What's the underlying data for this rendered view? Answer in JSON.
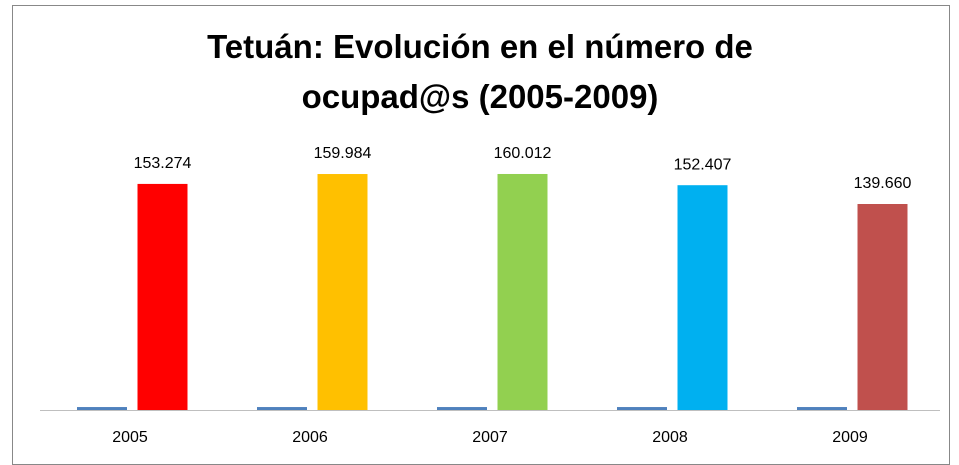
{
  "chart_data": {
    "type": "bar",
    "title": "Tetuán: Evolución en el número de ocupad@s (2005-2009)",
    "categories": [
      "2005",
      "2006",
      "2007",
      "2008",
      "2009"
    ],
    "series": [
      {
        "color": "#4f81bd",
        "values": [
          2005,
          2006,
          2007,
          2008,
          2009
        ]
      },
      {
        "colors": [
          "#ff0000",
          "#ffc000",
          "#92d050",
          "#00b0f0",
          "#c0504d"
        ],
        "values": [
          153274,
          159984,
          160012,
          152407,
          139660
        ],
        "value_labels": [
          "153.274",
          "159.984",
          "160.012",
          "152.407",
          "139.660"
        ]
      }
    ],
    "ylim": [
      0,
      180000
    ]
  }
}
